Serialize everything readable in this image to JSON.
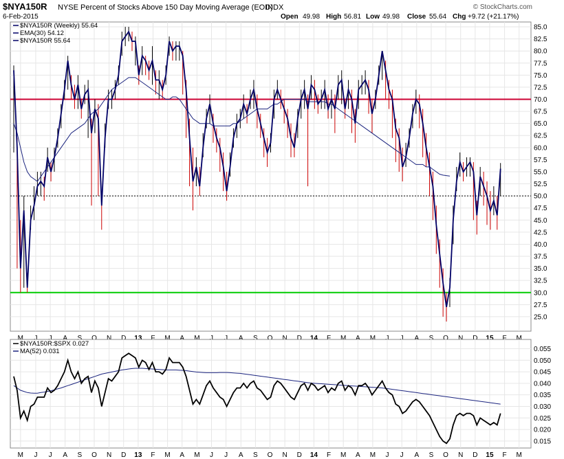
{
  "header": {
    "symbol": "$NYA150R",
    "description": "NYSE Percent of Stocks Above 150 Day Moving Average (EOD)",
    "exchange": "INDX",
    "date": "6-Feb-2015",
    "open_label": "Open",
    "open": "49.98",
    "high_label": "High",
    "high": "56.81",
    "low_label": "Low",
    "low": "49.98",
    "close_label": "Close",
    "close": "55.64",
    "chg_label": "Chg",
    "chg": "+9.72 (+21.17%)",
    "brand": "© StockCharts.com"
  },
  "chart_data": [
    {
      "type": "line",
      "title": "$NYA150R NYSE Percent of Stocks Above 150 Day Moving Average (EOD)",
      "legend": [
        {
          "label": "$NYA150R (Weekly) 55.64",
          "color": "#000066"
        },
        {
          "label": "EMA(30) 54.12",
          "color": "#000066"
        },
        {
          "label": "$NYA150R 55.64",
          "color": "#000066"
        }
      ],
      "legend_position": "top-left",
      "ylim": [
        22,
        86
      ],
      "y_ticks": [
        25,
        27.5,
        30,
        32.5,
        35,
        37.5,
        40,
        42.5,
        45,
        47.5,
        50,
        52.5,
        55,
        57.5,
        60,
        62.5,
        65,
        67.5,
        70,
        72.5,
        75,
        77.5,
        80,
        82.5,
        85
      ],
      "y_tick_labels": [
        "25.0",
        "27.5",
        "30.0",
        "32.5",
        "35.0",
        "37.5",
        "40.0",
        "42.5",
        "45.0",
        "47.5",
        "50.0",
        "52.5",
        "55.0",
        "57.5",
        "60.0",
        "62.5",
        "65.0",
        "67.5",
        "70.0",
        "72.5",
        "75.0",
        "77.5",
        "80.0",
        "82.5",
        "85.0"
      ],
      "x_range_weeks": [
        0,
        144
      ],
      "x_tick_labels": [
        "M",
        "J",
        "J",
        "A",
        "S",
        "O",
        "N",
        "D",
        "13",
        "F",
        "M",
        "A",
        "M",
        "J",
        "J",
        "A",
        "S",
        "O",
        "N",
        "D",
        "14",
        "F",
        "M",
        "A",
        "M",
        "J",
        "J",
        "A",
        "S",
        "O",
        "N",
        "D",
        "15",
        "F",
        "M"
      ],
      "x_tick_weeks": [
        2,
        6.5,
        10.8,
        15.2,
        19.5,
        23.8,
        28.2,
        32.5,
        36.8,
        41.2,
        45.5,
        49.8,
        54.2,
        58.5,
        62.8,
        67.2,
        71.5,
        75.8,
        80.2,
        84.5,
        88.8,
        93.2,
        97.5,
        101.8,
        106.2,
        110.5,
        114.8,
        119.2,
        123.5,
        127.8,
        132.2,
        136.5,
        140.8,
        145.2,
        149.5
      ],
      "horizontal_lines": [
        {
          "value": 70,
          "color": "#cc0033",
          "style": "solid"
        },
        {
          "value": 50,
          "color": "#000000",
          "style": "dotted"
        },
        {
          "value": 30,
          "color": "#00cc00",
          "style": "solid"
        }
      ],
      "series": [
        {
          "key": "close",
          "color": "#000066",
          "values": [
            76,
            60,
            35,
            47,
            31,
            45,
            48,
            52,
            53,
            52,
            58,
            55,
            58,
            62,
            67,
            72,
            78,
            73,
            70,
            73,
            68,
            71,
            72,
            63,
            68,
            66,
            48,
            62,
            70,
            70,
            72,
            75,
            82,
            83,
            84,
            82,
            82,
            75,
            79,
            78,
            76,
            78,
            74,
            74,
            72,
            75,
            82,
            80,
            81,
            81,
            79,
            72,
            62,
            53,
            56,
            52,
            60,
            66,
            69,
            65,
            62,
            60,
            56,
            51,
            56,
            62,
            65,
            66,
            69,
            67,
            70,
            72,
            68,
            65,
            62,
            59,
            61,
            70,
            72,
            70,
            68,
            66,
            62,
            60,
            66,
            70,
            72,
            68,
            73,
            72,
            69,
            70,
            72,
            68,
            70,
            68,
            73,
            74,
            68,
            72,
            70,
            65,
            72,
            73,
            74,
            72,
            67,
            70,
            75,
            80,
            76,
            72,
            70,
            64,
            62,
            56,
            58,
            62,
            67,
            70,
            69,
            65,
            60,
            56,
            52,
            44,
            38,
            32,
            27,
            31,
            45,
            53,
            57,
            55,
            56,
            57,
            55,
            46,
            54,
            52,
            50,
            47,
            49,
            46,
            55.64
          ],
          "high": [
            77,
            62,
            45,
            50,
            34,
            48,
            52,
            55,
            55,
            54,
            60,
            57,
            60,
            64,
            69,
            74,
            79,
            75,
            73,
            75,
            70,
            73,
            74,
            66,
            70,
            69,
            50,
            65,
            72,
            72,
            74,
            77,
            84,
            85,
            85,
            84,
            83,
            77,
            81,
            79,
            78,
            81,
            76,
            76,
            74,
            77,
            83,
            82,
            82,
            82,
            80,
            74,
            66,
            60,
            58,
            56,
            63,
            68,
            71,
            67,
            64,
            62,
            59,
            55,
            59,
            64,
            67,
            68,
            71,
            69,
            72,
            74,
            71,
            67,
            64,
            62,
            63,
            72,
            74,
            72,
            70,
            68,
            65,
            63,
            68,
            72,
            74,
            71,
            75,
            74,
            71,
            72,
            74,
            71,
            72,
            71,
            75,
            76,
            70,
            74,
            72,
            68,
            74,
            75,
            76,
            74,
            70,
            72,
            77,
            80,
            78,
            74,
            72,
            66,
            64,
            60,
            61,
            64,
            69,
            72,
            71,
            68,
            63,
            59,
            55,
            48,
            41,
            35,
            30,
            33,
            48,
            56,
            59,
            57,
            58,
            58,
            57,
            49,
            56,
            55,
            53,
            51,
            52,
            50,
            56.81
          ],
          "low": [
            59,
            35,
            30,
            31,
            30,
            43,
            45,
            50,
            50,
            49,
            55,
            53,
            55,
            60,
            64,
            70,
            72,
            70,
            68,
            68,
            66,
            69,
            62,
            48,
            63,
            50,
            43,
            60,
            68,
            68,
            70,
            73,
            79,
            81,
            82,
            80,
            77,
            73,
            75,
            75,
            74,
            73,
            71,
            70,
            70,
            73,
            79,
            78,
            78,
            78,
            71,
            62,
            52,
            47,
            52,
            50,
            58,
            64,
            65,
            61,
            59,
            55,
            51,
            49,
            54,
            60,
            62,
            64,
            66,
            65,
            68,
            68,
            64,
            62,
            58,
            56,
            59,
            66,
            70,
            68,
            65,
            62,
            58,
            58,
            62,
            66,
            68,
            52,
            70,
            68,
            67,
            68,
            68,
            66,
            66,
            63,
            70,
            69,
            66,
            68,
            63,
            61,
            68,
            71,
            71,
            67,
            63,
            68,
            73,
            74,
            70,
            68,
            62,
            57,
            55,
            53,
            56,
            60,
            64,
            67,
            64,
            58,
            56,
            50,
            45,
            38,
            31,
            25,
            24,
            27,
            40,
            51,
            54,
            53,
            54,
            54,
            45,
            42,
            50,
            48,
            44,
            43,
            46,
            43,
            49.98
          ]
        },
        {
          "key": "ema30",
          "name": "EMA(30)",
          "color": "#1a237e",
          "values": [
            65,
            63,
            60,
            57,
            55,
            54,
            53.5,
            53,
            54,
            55,
            56,
            57,
            58,
            59,
            60,
            61,
            62,
            63,
            63.5,
            64,
            64.5,
            65,
            66,
            67,
            67.5,
            68,
            69,
            70,
            71,
            72,
            72.5,
            73,
            73.5,
            74,
            74.5,
            74.5,
            74.5,
            74,
            73.5,
            73,
            72.5,
            72,
            71.5,
            71,
            70.5,
            70,
            70,
            70.5,
            70.5,
            70,
            69,
            68,
            67,
            66,
            65.5,
            65,
            65,
            65,
            65,
            64.5,
            64.5,
            64.5,
            64.5,
            64.5,
            64.5,
            65,
            65,
            65.5,
            66,
            66.5,
            67,
            67.5,
            68,
            68,
            68,
            68,
            68.5,
            69,
            69,
            69.5,
            70,
            70,
            70,
            70,
            70,
            70,
            70,
            69.5,
            69.5,
            69.5,
            69.5,
            69.5,
            69.5,
            69,
            69,
            68.5,
            68,
            67.5,
            67,
            66.5,
            66,
            65.5,
            65,
            64.5,
            64,
            63.5,
            63,
            62.5,
            62,
            61.5,
            61,
            60.5,
            60,
            59.5,
            59,
            58.5,
            58,
            57.5,
            57,
            56.5,
            56.5,
            56.5,
            56,
            56,
            55.5,
            55,
            54.5,
            54.3,
            54.2,
            54.12
          ]
        }
      ]
    },
    {
      "type": "line",
      "title": "$NYA150R:$SPX",
      "legend": [
        {
          "label": "$NYA150R:$SPX 0.027",
          "color": "#000000"
        },
        {
          "label": "MA(52) 0.031",
          "color": "#1a237e"
        }
      ],
      "legend_position": "top-left",
      "ylim": [
        0.012,
        0.059
      ],
      "y_ticks": [
        0.015,
        0.02,
        0.025,
        0.03,
        0.035,
        0.04,
        0.045,
        0.05,
        0.055
      ],
      "y_tick_labels": [
        "0.015",
        "0.020",
        "0.025",
        "0.030",
        "0.035",
        "0.040",
        "0.045",
        "0.050",
        "0.055"
      ],
      "x_tick_labels": [
        "M",
        "J",
        "J",
        "A",
        "S",
        "O",
        "N",
        "D",
        "13",
        "F",
        "M",
        "A",
        "M",
        "J",
        "J",
        "A",
        "S",
        "O",
        "N",
        "D",
        "14",
        "F",
        "M",
        "A",
        "M",
        "J",
        "J",
        "A",
        "S",
        "O",
        "N",
        "D",
        "15",
        "F",
        "M"
      ],
      "series": [
        {
          "key": "ratio",
          "color": "#000000",
          "values": [
            0.043,
            0.037,
            0.025,
            0.028,
            0.024,
            0.03,
            0.031,
            0.034,
            0.034,
            0.034,
            0.038,
            0.036,
            0.037,
            0.039,
            0.042,
            0.045,
            0.05,
            0.045,
            0.042,
            0.045,
            0.04,
            0.042,
            0.043,
            0.036,
            0.041,
            0.038,
            0.03,
            0.036,
            0.042,
            0.041,
            0.043,
            0.045,
            0.051,
            0.052,
            0.053,
            0.052,
            0.051,
            0.047,
            0.05,
            0.049,
            0.046,
            0.049,
            0.045,
            0.045,
            0.044,
            0.046,
            0.051,
            0.049,
            0.049,
            0.049,
            0.047,
            0.043,
            0.037,
            0.031,
            0.033,
            0.031,
            0.035,
            0.039,
            0.041,
            0.038,
            0.036,
            0.034,
            0.033,
            0.03,
            0.033,
            0.036,
            0.038,
            0.038,
            0.04,
            0.038,
            0.04,
            0.041,
            0.038,
            0.037,
            0.035,
            0.033,
            0.034,
            0.039,
            0.041,
            0.04,
            0.038,
            0.036,
            0.034,
            0.033,
            0.036,
            0.039,
            0.04,
            0.037,
            0.04,
            0.039,
            0.037,
            0.038,
            0.039,
            0.036,
            0.038,
            0.037,
            0.04,
            0.041,
            0.037,
            0.039,
            0.038,
            0.035,
            0.039,
            0.039,
            0.04,
            0.038,
            0.035,
            0.037,
            0.039,
            0.041,
            0.038,
            0.036,
            0.035,
            0.031,
            0.03,
            0.027,
            0.028,
            0.03,
            0.032,
            0.033,
            0.032,
            0.03,
            0.028,
            0.026,
            0.023,
            0.02,
            0.017,
            0.015,
            0.014,
            0.016,
            0.022,
            0.026,
            0.027,
            0.026,
            0.027,
            0.027,
            0.026,
            0.022,
            0.025,
            0.024,
            0.023,
            0.022,
            0.023,
            0.022,
            0.027
          ]
        },
        {
          "key": "ma52",
          "name": "MA(52)",
          "color": "#1a237e",
          "values": [
            0.039,
            0.038,
            0.037,
            0.0365,
            0.036,
            0.0358,
            0.0357,
            0.0357,
            0.036,
            0.0362,
            0.0365,
            0.0368,
            0.0372,
            0.0376,
            0.038,
            0.0385,
            0.039,
            0.0395,
            0.04,
            0.0405,
            0.041,
            0.0415,
            0.042,
            0.0425,
            0.043,
            0.0435,
            0.044,
            0.0443,
            0.0446,
            0.0449,
            0.0452,
            0.0455,
            0.0458,
            0.046,
            0.0462,
            0.0464,
            0.0465,
            0.0465,
            0.0465,
            0.0464,
            0.0463,
            0.0462,
            0.0461,
            0.046,
            0.0459,
            0.0458,
            0.0458,
            0.0458,
            0.0458,
            0.0457,
            0.0456,
            0.0455,
            0.0453,
            0.0451,
            0.0449,
            0.0448,
            0.0447,
            0.0446,
            0.0446,
            0.0446,
            0.0446,
            0.0447,
            0.0447,
            0.0447,
            0.0446,
            0.0445,
            0.0444,
            0.0443,
            0.0441,
            0.0439,
            0.0437,
            0.0435,
            0.0433,
            0.0431,
            0.0429,
            0.0427,
            0.0425,
            0.0423,
            0.0421,
            0.0419,
            0.0417,
            0.0415,
            0.0413,
            0.0411,
            0.0409,
            0.0407,
            0.0405,
            0.0403,
            0.0401,
            0.04,
            0.0399,
            0.0398,
            0.0397,
            0.0396,
            0.0395,
            0.0394,
            0.0393,
            0.0392,
            0.0391,
            0.039,
            0.0389,
            0.0388,
            0.0387,
            0.0386,
            0.0385,
            0.0384,
            0.0383,
            0.0382,
            0.0381,
            0.038,
            0.0378,
            0.0376,
            0.0374,
            0.0372,
            0.037,
            0.0368,
            0.0366,
            0.0364,
            0.0362,
            0.036,
            0.0358,
            0.0356,
            0.0354,
            0.0352,
            0.035,
            0.0348,
            0.0346,
            0.0344,
            0.0342,
            0.034,
            0.0338,
            0.0336,
            0.0334,
            0.0332,
            0.033,
            0.0328,
            0.0326,
            0.0324,
            0.0322,
            0.032,
            0.0318,
            0.0316,
            0.0314,
            0.0312,
            0.031
          ]
        }
      ]
    }
  ]
}
